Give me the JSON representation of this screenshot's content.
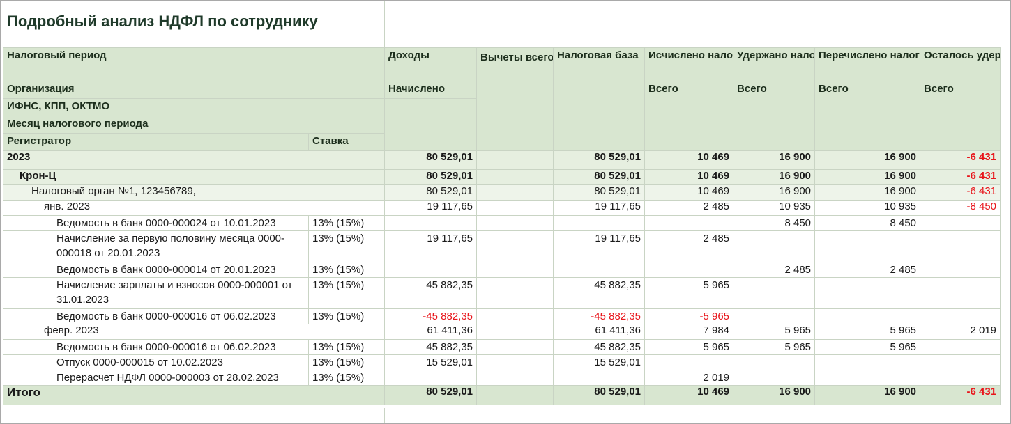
{
  "title": "Подробный анализ НДФЛ по сотруднику",
  "header": {
    "period": "Налоговый период",
    "org": "Организация",
    "ifns": "ИФНС, КПП, ОКТМО",
    "month": "Месяц налогового периода",
    "registrar": "Регистратор",
    "rate": "Ставка",
    "income": "Доходы",
    "income_sub": "Начислено",
    "deductions": "Вычеты всего",
    "base": "Налоговая база",
    "calculated": "Исчислено налога",
    "calculated_sub": "Всего",
    "withheld": "Удержано налога",
    "withheld_sub": "Всего",
    "transferred": "Перечислено налога",
    "transferred_sub": "Всего",
    "remaining": "Осталось удержать",
    "remaining_sub": "Всего"
  },
  "rows": [
    {
      "level": "lvl0",
      "label": "2023",
      "rate": "",
      "income": "80 529,01",
      "deductions": "",
      "base": "80 529,01",
      "calculated": "10 469",
      "withheld": "16 900",
      "transferred": "16 900",
      "remaining": "-6 431"
    },
    {
      "level": "lvl1",
      "label": "Крон-Ц",
      "rate": "",
      "income": "80 529,01",
      "deductions": "",
      "base": "80 529,01",
      "calculated": "10 469",
      "withheld": "16 900",
      "transferred": "16 900",
      "remaining": "-6 431"
    },
    {
      "level": "lvl2",
      "label": "Налоговый орган №1, 123456789,",
      "rate": "",
      "income": "80 529,01",
      "deductions": "",
      "base": "80 529,01",
      "calculated": "10 469",
      "withheld": "16 900",
      "transferred": "16 900",
      "remaining": "-6 431"
    },
    {
      "level": "lvl3",
      "label": "янв. 2023",
      "rate": "",
      "income": "19 117,65",
      "deductions": "",
      "base": "19 117,65",
      "calculated": "2 485",
      "withheld": "10 935",
      "transferred": "10 935",
      "remaining": "-8 450"
    },
    {
      "level": "doc",
      "label": "Ведомость в банк 0000-000024 от 10.01.2023",
      "rate": "13% (15%)",
      "income": "",
      "deductions": "",
      "base": "",
      "calculated": "",
      "withheld": "8 450",
      "transferred": "8 450",
      "remaining": ""
    },
    {
      "level": "doc2",
      "label": "Начисление за первую половину месяца 0000-000018 от 20.01.2023",
      "rate": "13% (15%)",
      "income": "19 117,65",
      "deductions": "",
      "base": "19 117,65",
      "calculated": "2 485",
      "withheld": "",
      "transferred": "",
      "remaining": ""
    },
    {
      "level": "doc",
      "label": "Ведомость в банк 0000-000014 от 20.01.2023",
      "rate": "13% (15%)",
      "income": "",
      "deductions": "",
      "base": "",
      "calculated": "",
      "withheld": "2 485",
      "transferred": "2 485",
      "remaining": ""
    },
    {
      "level": "doc2",
      "label": "Начисление зарплаты и взносов 0000-000001 от 31.01.2023",
      "rate": "13% (15%)",
      "income": "45 882,35",
      "deductions": "",
      "base": "45 882,35",
      "calculated": "5 965",
      "withheld": "",
      "transferred": "",
      "remaining": ""
    },
    {
      "level": "doc",
      "label": "Ведомость в банк 0000-000016 от 06.02.2023",
      "rate": "13% (15%)",
      "income": "-45 882,35",
      "deductions": "",
      "base": "-45 882,35",
      "calculated": "-5 965",
      "withheld": "",
      "transferred": "",
      "remaining": ""
    },
    {
      "level": "lvl3",
      "label": "февр. 2023",
      "rate": "",
      "income": "61 411,36",
      "deductions": "",
      "base": "61 411,36",
      "calculated": "7 984",
      "withheld": "5 965",
      "transferred": "5 965",
      "remaining": "2 019"
    },
    {
      "level": "doc",
      "label": "Ведомость в банк 0000-000016 от 06.02.2023",
      "rate": "13% (15%)",
      "income": "45 882,35",
      "deductions": "",
      "base": "45 882,35",
      "calculated": "5 965",
      "withheld": "5 965",
      "transferred": "5 965",
      "remaining": ""
    },
    {
      "level": "doc",
      "label": "Отпуск 0000-000015 от 10.02.2023",
      "rate": "13% (15%)",
      "income": "15 529,01",
      "deductions": "",
      "base": "15 529,01",
      "calculated": "",
      "withheld": "",
      "transferred": "",
      "remaining": ""
    },
    {
      "level": "doc",
      "label": "Перерасчет НДФЛ 0000-000003 от 28.02.2023",
      "rate": "13% (15%)",
      "income": "",
      "deductions": "",
      "base": "",
      "calculated": "2 019",
      "withheld": "",
      "transferred": "",
      "remaining": ""
    }
  ],
  "total": {
    "label": "Итого",
    "income": "80 529,01",
    "deductions": "",
    "base": "80 529,01",
    "calculated": "10 469",
    "withheld": "16 900",
    "transferred": "16 900",
    "remaining": "-6 431"
  }
}
